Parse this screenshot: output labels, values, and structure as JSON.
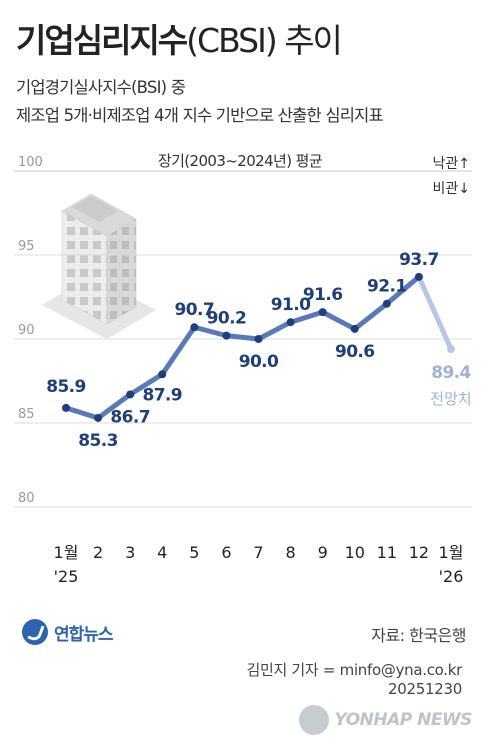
{
  "header": {
    "title_main": "기업심리지수",
    "title_paren": "(CBSI) 추이",
    "subtitle_line1": "기업경기실사지수(BSI) 중",
    "subtitle_line2": "제조업 5개·비제조업 4개 지수 기반으로 산출한 심리지표"
  },
  "chart_data": {
    "type": "line",
    "categories": [
      "1월\n'25",
      "2",
      "3",
      "4",
      "5",
      "6",
      "7",
      "8",
      "9",
      "10",
      "11",
      "12",
      "1월\n'26"
    ],
    "series": [
      {
        "values": [
          85.9,
          85.3,
          86.7,
          87.9,
          90.7,
          90.2,
          90.0,
          91.0,
          91.6,
          90.6,
          92.1,
          93.7,
          89.4
        ]
      }
    ],
    "forecast_last_point": true,
    "forecast_label": "전망치",
    "ylim": [
      80,
      100
    ],
    "yticks": [
      100,
      95,
      90,
      85,
      80
    ],
    "reference_line": {
      "value": 100,
      "label": "장기(2003~2024년) 평균"
    },
    "annotations": {
      "up": "낙관↑",
      "down": "비관↓"
    },
    "colors": {
      "line": "#5a79b8",
      "forecast": "#b7c7e2",
      "point": "#1e3f7a",
      "label": "#1e3f7a",
      "forecast_label": "#9fb1d6",
      "grid": "#dcdcdc"
    },
    "grid": true
  },
  "footer": {
    "logo_text": "연합뉴스",
    "source": "자료: 한국은행",
    "reporter": "김민지 기자 = minfo@yna.co.kr",
    "date": "20251230",
    "watermark": "YONHAP NEWS"
  }
}
